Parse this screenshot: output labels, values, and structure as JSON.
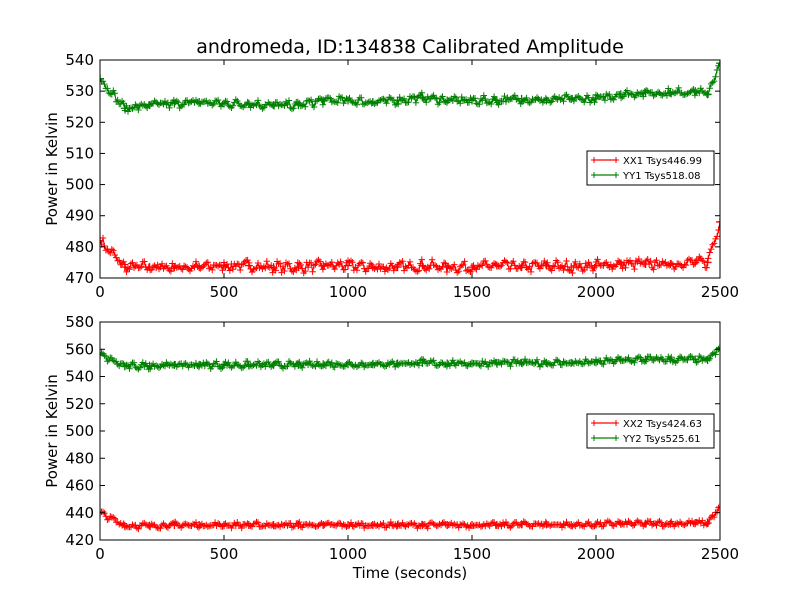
{
  "title": "andromeda, ID:134838 Calibrated Amplitude",
  "colors": {
    "xx": "#ff0000",
    "yy": "#008000"
  },
  "chart_data": [
    {
      "type": "line",
      "marker": "+",
      "xlabel": "",
      "ylabel": "Power in Kelvin",
      "xlim": [
        0,
        2500
      ],
      "ylim": [
        470,
        540
      ],
      "xticks": [
        0,
        500,
        1000,
        1500,
        2000,
        2500
      ],
      "yticks": [
        470,
        480,
        490,
        500,
        510,
        520,
        530,
        540
      ],
      "grid": false,
      "legend_position": "right",
      "series": [
        {
          "name": "XX1 Tsys446.99",
          "color": "#ff0000",
          "x": [
            0,
            100,
            200,
            300,
            400,
            500,
            600,
            700,
            800,
            900,
            1000,
            1100,
            1200,
            1300,
            1400,
            1500,
            1600,
            1700,
            1800,
            1900,
            2000,
            2100,
            2200,
            2300,
            2400,
            2450,
            2500
          ],
          "y": [
            482,
            473.5,
            473.5,
            473.5,
            473.5,
            474,
            474,
            473.5,
            473.5,
            474,
            474,
            473.5,
            473.5,
            474,
            473.5,
            473.5,
            474,
            473.5,
            474,
            473.5,
            474,
            474.5,
            474.5,
            474.5,
            475,
            475,
            488
          ],
          "noise": 1.3
        },
        {
          "name": "YY1 Tsys518.08",
          "color": "#008000",
          "x": [
            0,
            100,
            200,
            300,
            400,
            500,
            600,
            700,
            800,
            900,
            1000,
            1100,
            1200,
            1300,
            1400,
            1500,
            1600,
            1700,
            1800,
            1900,
            2000,
            2100,
            2200,
            2300,
            2400,
            2450,
            2500
          ],
          "y": [
            534,
            524.5,
            525.5,
            526,
            526.5,
            526,
            526,
            525.5,
            525.5,
            527,
            527,
            526.5,
            527,
            528,
            527,
            527,
            527,
            527.5,
            527,
            527.5,
            527.5,
            529,
            529.5,
            529.5,
            530,
            529,
            539
          ],
          "noise": 1.0
        }
      ]
    },
    {
      "type": "line",
      "marker": "+",
      "xlabel": "Time (seconds)",
      "ylabel": "Power in Kelvin",
      "xlim": [
        0,
        2500
      ],
      "ylim": [
        420,
        580
      ],
      "xticks": [
        0,
        500,
        1000,
        1500,
        2000,
        2500
      ],
      "yticks": [
        420,
        440,
        460,
        480,
        500,
        520,
        540,
        560,
        580
      ],
      "grid": false,
      "legend_position": "right",
      "series": [
        {
          "name": "XX2 Tsys424.63",
          "color": "#ff0000",
          "x": [
            0,
            100,
            200,
            300,
            400,
            500,
            600,
            700,
            800,
            900,
            1000,
            1100,
            1200,
            1300,
            1400,
            1500,
            1600,
            1700,
            1800,
            1900,
            2000,
            2100,
            2200,
            2300,
            2400,
            2450,
            2500
          ],
          "y": [
            440,
            430.5,
            430.5,
            431,
            431,
            431,
            431,
            431,
            431,
            431,
            431,
            431,
            431,
            431,
            431,
            431,
            431,
            431.5,
            431.5,
            431,
            431.5,
            432,
            432,
            432,
            432.5,
            432.5,
            444
          ],
          "noise": 1.5
        },
        {
          "name": "YY2 Tsys525.61",
          "color": "#008000",
          "x": [
            0,
            100,
            200,
            300,
            400,
            500,
            600,
            700,
            800,
            900,
            1000,
            1100,
            1200,
            1300,
            1400,
            1500,
            1600,
            1700,
            1800,
            1900,
            2000,
            2100,
            2200,
            2300,
            2400,
            2450,
            2500
          ],
          "y": [
            556,
            547.5,
            548,
            548.5,
            548.5,
            548.5,
            548.5,
            548.5,
            548.5,
            549,
            549,
            549,
            549.5,
            550,
            549.5,
            549.5,
            550,
            550,
            550,
            550,
            550.5,
            552,
            552.5,
            552.5,
            552.5,
            552,
            561
          ],
          "noise": 1.8
        }
      ]
    }
  ]
}
